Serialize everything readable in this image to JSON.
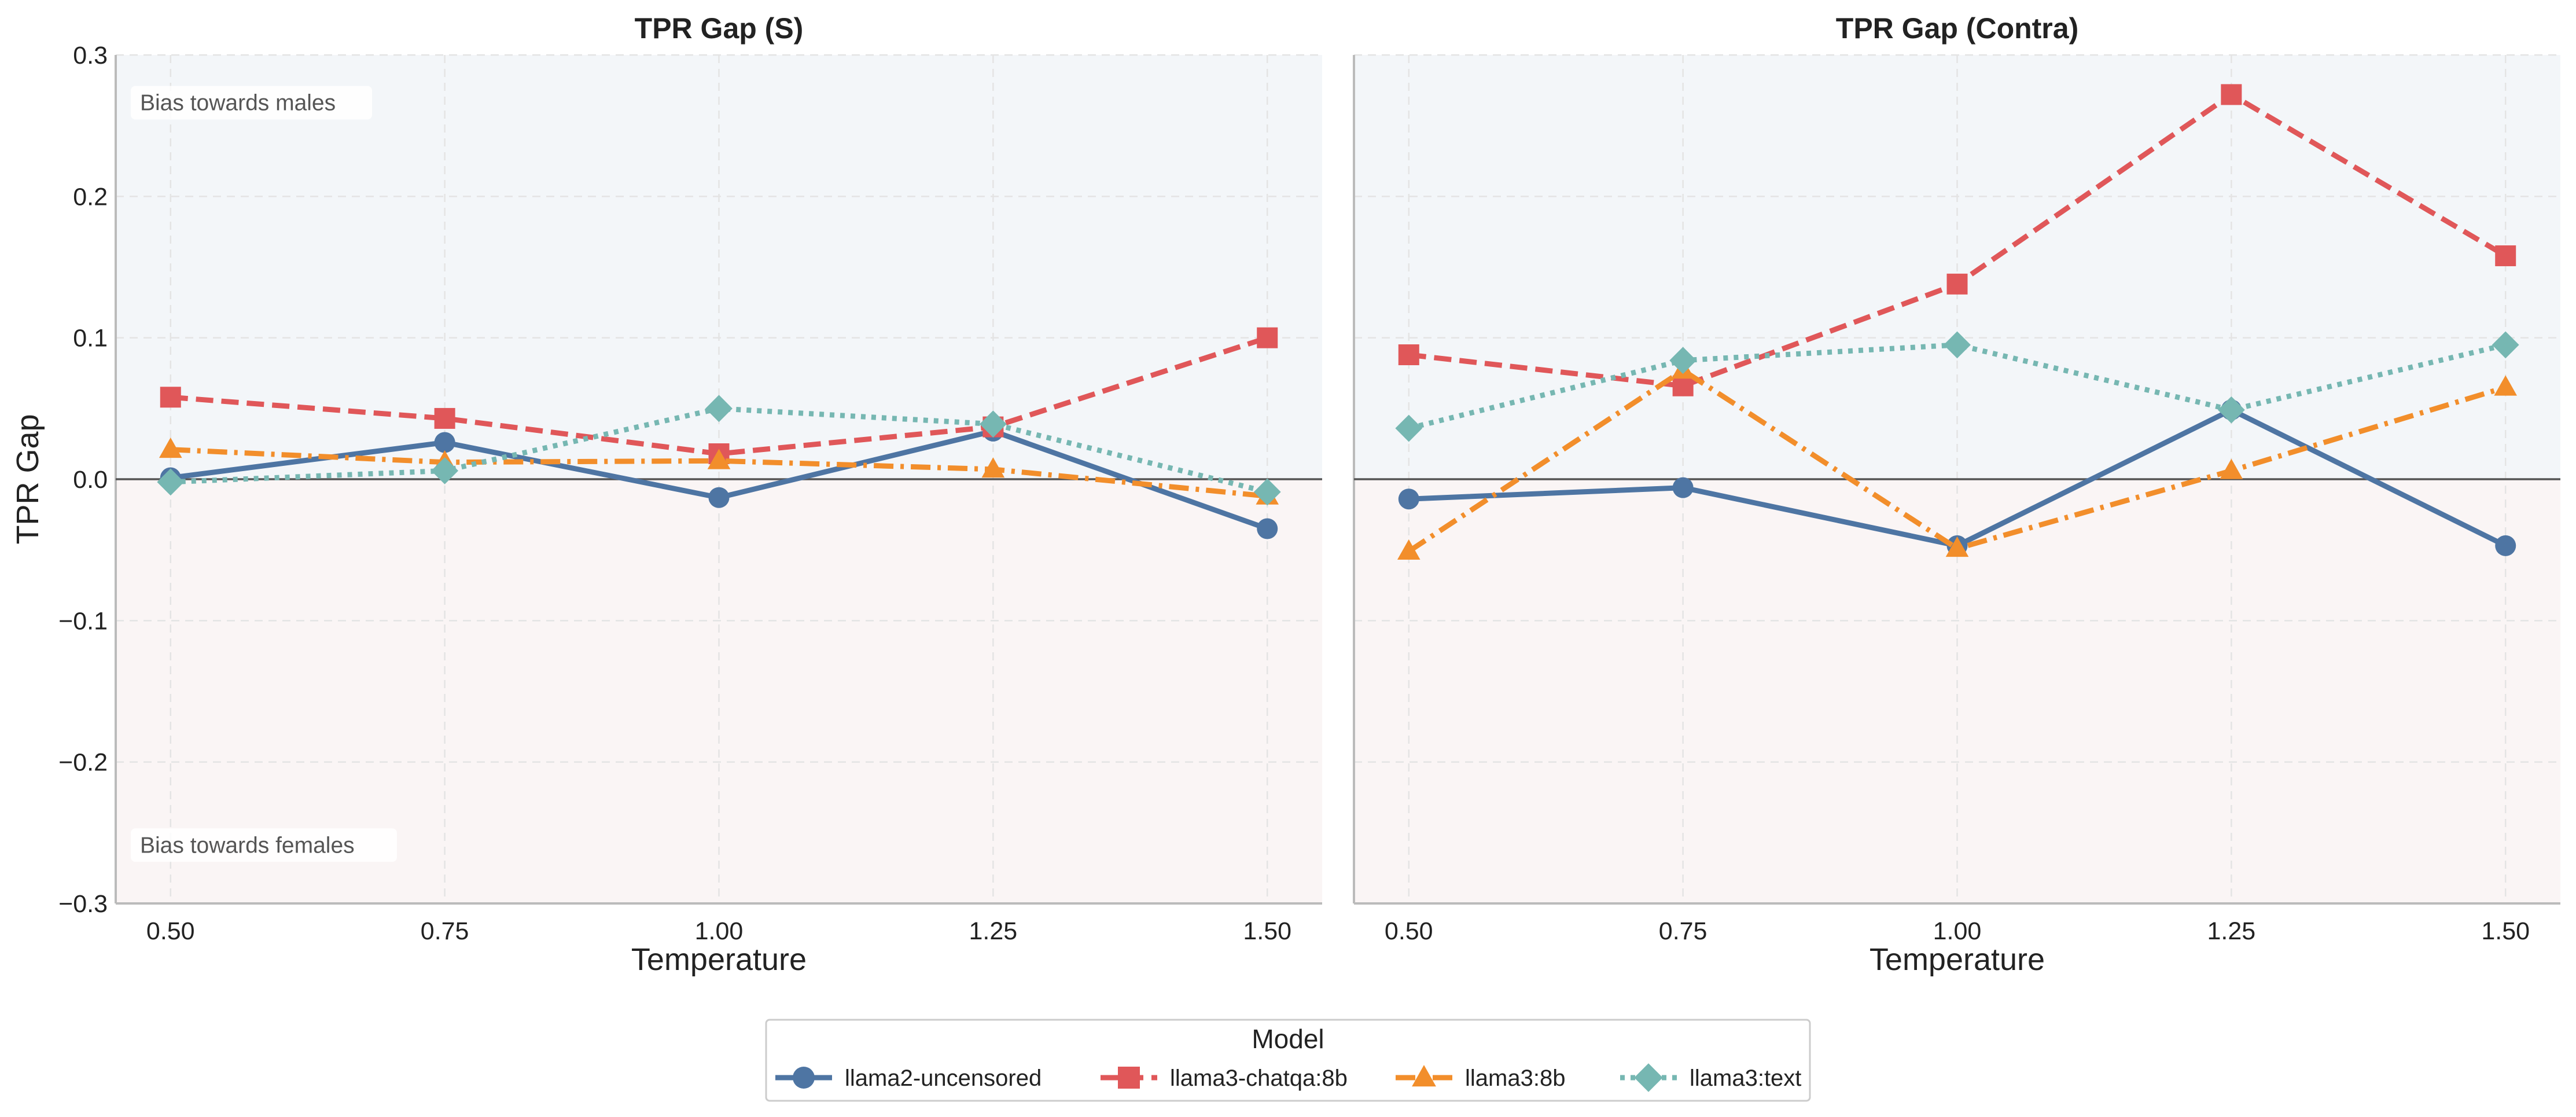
{
  "legend_title": "Model",
  "series_styles": [
    {
      "name": "llama2-uncensored",
      "color": "#4e75a3",
      "marker": "circle",
      "dash": "solid"
    },
    {
      "name": "llama3-chatqa:8b",
      "color": "#e05759",
      "marker": "square",
      "dash": "dashed"
    },
    {
      "name": "llama3:8b",
      "color": "#f28e2b",
      "marker": "triangle",
      "dash": "dashdot"
    },
    {
      "name": "llama3:text",
      "color": "#76b7b2",
      "marker": "diamond",
      "dash": "dotted"
    }
  ],
  "colors": {
    "male_region": "#f3f6f9",
    "female_region": "#faf5f5",
    "zero_line": "#555555",
    "grid": "#e4e4e4",
    "spine": "#bbbbbb"
  },
  "chart_data": [
    {
      "type": "line",
      "title": "TPR Gap (S)",
      "xlabel": "Temperature",
      "ylabel": "TPR Gap",
      "x": [
        0.5,
        0.75,
        1.0,
        1.25,
        1.5
      ],
      "x_tick_labels": [
        "0.50",
        "0.75",
        "1.00",
        "1.25",
        "1.50"
      ],
      "y_ticks": [
        0.3,
        0.2,
        0.1,
        0.0,
        -0.1,
        -0.2,
        -0.3
      ],
      "y_tick_labels": [
        "0.3",
        "0.2",
        "0.1",
        "0.0",
        "−0.1",
        "−0.2",
        "−0.3"
      ],
      "xlim": [
        0.45,
        1.55
      ],
      "ylim": [
        -0.3,
        0.3
      ],
      "grid": true,
      "annotations": [
        "Bias towards males",
        "Bias towards females"
      ],
      "series": [
        {
          "name": "llama2-uncensored",
          "values": [
            0.001,
            0.026,
            -0.013,
            0.034,
            -0.035
          ]
        },
        {
          "name": "llama3-chatqa:8b",
          "values": [
            0.058,
            0.043,
            0.018,
            0.037,
            0.1
          ]
        },
        {
          "name": "llama3:8b",
          "values": [
            0.021,
            0.012,
            0.013,
            0.007,
            -0.012
          ]
        },
        {
          "name": "llama3:text",
          "values": [
            -0.002,
            0.006,
            0.05,
            0.039,
            -0.009
          ]
        }
      ]
    },
    {
      "type": "line",
      "title": "TPR Gap (Contra)",
      "xlabel": "Temperature",
      "ylabel": "",
      "x": [
        0.5,
        0.75,
        1.0,
        1.25,
        1.5
      ],
      "x_tick_labels": [
        "0.50",
        "0.75",
        "1.00",
        "1.25",
        "1.50"
      ],
      "xlim": [
        0.45,
        1.55
      ],
      "ylim": [
        -0.3,
        0.3
      ],
      "grid": true,
      "series": [
        {
          "name": "llama2-uncensored",
          "values": [
            -0.014,
            -0.006,
            -0.047,
            0.049,
            -0.047
          ]
        },
        {
          "name": "llama3-chatqa:8b",
          "values": [
            0.088,
            0.066,
            0.138,
            0.272,
            0.158
          ]
        },
        {
          "name": "llama3:8b",
          "values": [
            -0.051,
            0.077,
            -0.049,
            0.006,
            0.065
          ]
        },
        {
          "name": "llama3:text",
          "values": [
            0.036,
            0.084,
            0.095,
            0.049,
            0.095
          ]
        }
      ]
    }
  ]
}
